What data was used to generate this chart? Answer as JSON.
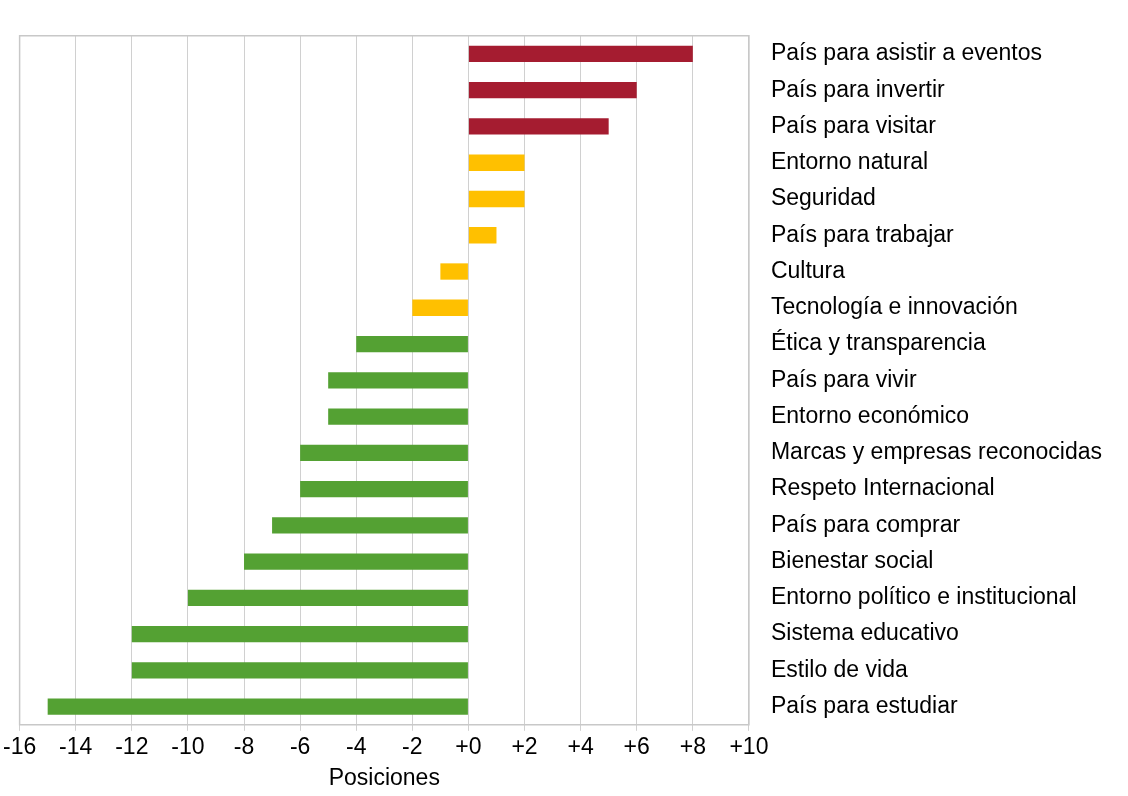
{
  "chart_data": {
    "type": "bar",
    "orientation": "horizontal",
    "xlabel": "Posiciones",
    "categories": [
      "País para asistir a eventos",
      "País para invertir",
      "País para visitar",
      "Entorno natural",
      "Seguridad",
      "País para trabajar",
      "Cultura",
      "Tecnología e innovación",
      "Ética y transparencia",
      "País para vivir",
      "Entorno económico",
      "Marcas y empresas reconocidas",
      "Respeto Internacional",
      "País para comprar",
      "Bienestar social",
      "Entorno político e institucional",
      "Sistema educativo",
      "Estilo de vida",
      "País para estudiar"
    ],
    "values": [
      8,
      6,
      5,
      2,
      2,
      1,
      -1,
      -2,
      -4,
      -5,
      -5,
      -6,
      -6,
      -7,
      -8,
      -10,
      -12,
      -12,
      -15
    ],
    "colors": [
      "#a51c30",
      "#a51c30",
      "#a51c30",
      "#ffc000",
      "#ffc000",
      "#ffc000",
      "#ffc000",
      "#ffc000",
      "#54a133",
      "#54a133",
      "#54a133",
      "#54a133",
      "#54a133",
      "#54a133",
      "#54a133",
      "#54a133",
      "#54a133",
      "#54a133",
      "#54a133"
    ],
    "xlim": [
      -16,
      10
    ],
    "xticks": [
      -16,
      -14,
      -12,
      -10,
      -8,
      -6,
      -4,
      -2,
      {
        "value": 0,
        "label": "+0"
      },
      {
        "value": 2,
        "label": "+2"
      },
      {
        "value": 4,
        "label": "+4"
      },
      {
        "value": 6,
        "label": "+6"
      },
      {
        "value": 8,
        "label": "+8"
      },
      {
        "value": 10,
        "label": "+10"
      }
    ],
    "grid": "x",
    "legend": false
  }
}
